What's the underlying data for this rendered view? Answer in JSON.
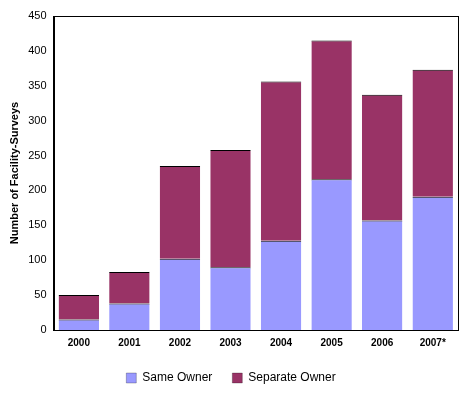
{
  "chart_data": {
    "type": "bar",
    "y_label": "Number of Facility-Surveys",
    "categories": [
      "2000",
      "2001",
      "2002",
      "2003",
      "2004",
      "2005",
      "2006",
      "2007*"
    ],
    "series": [
      {
        "name": "Same Owner",
        "color": "#9999ff",
        "values": [
          15,
          38,
          102,
          90,
          128,
          216,
          157,
          191
        ]
      },
      {
        "name": "Separate Owner",
        "color": "#993366",
        "values": [
          35,
          45,
          133,
          168,
          228,
          199,
          180,
          182
        ]
      }
    ],
    "ylim": [
      0,
      450
    ],
    "yticks": [
      0,
      50,
      100,
      150,
      200,
      250,
      300,
      350,
      400,
      450
    ],
    "stacked": true,
    "grid": false,
    "legend": "bottom"
  }
}
